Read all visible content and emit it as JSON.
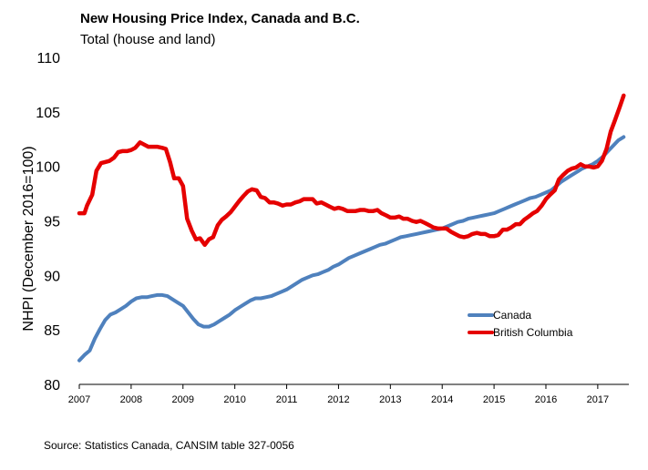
{
  "chart_data": {
    "type": "line",
    "title": "New Housing Price Index, Canada and B.C.",
    "subtitle": "Total (house and land)",
    "ylabel": "NHPI (December 2016=100)",
    "xlabel": "",
    "ylim": [
      80,
      110
    ],
    "yticks": [
      80,
      85,
      90,
      95,
      100,
      105,
      110
    ],
    "xlim": [
      2007,
      2017.6
    ],
    "xticks": [
      "2007",
      "2008",
      "2009",
      "2010",
      "2011",
      "2012",
      "2013",
      "2014",
      "2015",
      "2016",
      "2017"
    ],
    "grid": false,
    "legend_position": "right",
    "source": "Source:  Statistics Canada, CANSIM table  327-0056",
    "series": [
      {
        "name": "Canada",
        "color": "#4f81bd",
        "points": [
          [
            2007.0,
            82.2
          ],
          [
            2007.1,
            82.7
          ],
          [
            2007.2,
            83.1
          ],
          [
            2007.3,
            84.2
          ],
          [
            2007.4,
            85.1
          ],
          [
            2007.5,
            85.9
          ],
          [
            2007.6,
            86.4
          ],
          [
            2007.7,
            86.6
          ],
          [
            2007.8,
            86.9
          ],
          [
            2007.9,
            87.2
          ],
          [
            2008.0,
            87.6
          ],
          [
            2008.1,
            87.9
          ],
          [
            2008.2,
            88.0
          ],
          [
            2008.3,
            88.0
          ],
          [
            2008.4,
            88.1
          ],
          [
            2008.5,
            88.2
          ],
          [
            2008.6,
            88.2
          ],
          [
            2008.7,
            88.1
          ],
          [
            2008.8,
            87.8
          ],
          [
            2008.9,
            87.5
          ],
          [
            2009.0,
            87.2
          ],
          [
            2009.1,
            86.6
          ],
          [
            2009.2,
            86.0
          ],
          [
            2009.3,
            85.5
          ],
          [
            2009.4,
            85.3
          ],
          [
            2009.5,
            85.3
          ],
          [
            2009.6,
            85.5
          ],
          [
            2009.7,
            85.8
          ],
          [
            2009.8,
            86.1
          ],
          [
            2009.9,
            86.4
          ],
          [
            2010.0,
            86.8
          ],
          [
            2010.1,
            87.1
          ],
          [
            2010.2,
            87.4
          ],
          [
            2010.3,
            87.7
          ],
          [
            2010.4,
            87.9
          ],
          [
            2010.5,
            87.9
          ],
          [
            2010.6,
            88.0
          ],
          [
            2010.7,
            88.1
          ],
          [
            2010.8,
            88.3
          ],
          [
            2010.9,
            88.5
          ],
          [
            2011.0,
            88.7
          ],
          [
            2011.1,
            89.0
          ],
          [
            2011.2,
            89.3
          ],
          [
            2011.3,
            89.6
          ],
          [
            2011.4,
            89.8
          ],
          [
            2011.5,
            90.0
          ],
          [
            2011.6,
            90.1
          ],
          [
            2011.7,
            90.3
          ],
          [
            2011.8,
            90.5
          ],
          [
            2011.9,
            90.8
          ],
          [
            2012.0,
            91.0
          ],
          [
            2012.1,
            91.3
          ],
          [
            2012.2,
            91.6
          ],
          [
            2012.3,
            91.8
          ],
          [
            2012.4,
            92.0
          ],
          [
            2012.5,
            92.2
          ],
          [
            2012.6,
            92.4
          ],
          [
            2012.7,
            92.6
          ],
          [
            2012.8,
            92.8
          ],
          [
            2012.9,
            92.9
          ],
          [
            2013.0,
            93.1
          ],
          [
            2013.1,
            93.3
          ],
          [
            2013.2,
            93.5
          ],
          [
            2013.3,
            93.6
          ],
          [
            2013.4,
            93.7
          ],
          [
            2013.5,
            93.8
          ],
          [
            2013.6,
            93.9
          ],
          [
            2013.7,
            94.0
          ],
          [
            2013.8,
            94.1
          ],
          [
            2013.9,
            94.2
          ],
          [
            2014.0,
            94.3
          ],
          [
            2014.1,
            94.5
          ],
          [
            2014.2,
            94.7
          ],
          [
            2014.3,
            94.9
          ],
          [
            2014.4,
            95.0
          ],
          [
            2014.5,
            95.2
          ],
          [
            2014.6,
            95.3
          ],
          [
            2014.7,
            95.4
          ],
          [
            2014.8,
            95.5
          ],
          [
            2014.9,
            95.6
          ],
          [
            2015.0,
            95.7
          ],
          [
            2015.1,
            95.9
          ],
          [
            2015.2,
            96.1
          ],
          [
            2015.3,
            96.3
          ],
          [
            2015.4,
            96.5
          ],
          [
            2015.5,
            96.7
          ],
          [
            2015.6,
            96.9
          ],
          [
            2015.7,
            97.1
          ],
          [
            2015.8,
            97.2
          ],
          [
            2015.9,
            97.4
          ],
          [
            2016.0,
            97.6
          ],
          [
            2016.1,
            97.8
          ],
          [
            2016.2,
            98.2
          ],
          [
            2016.3,
            98.6
          ],
          [
            2016.4,
            98.9
          ],
          [
            2016.5,
            99.2
          ],
          [
            2016.6,
            99.5
          ],
          [
            2016.7,
            99.8
          ],
          [
            2016.8,
            100.0
          ],
          [
            2016.9,
            100.2
          ],
          [
            2017.0,
            100.5
          ],
          [
            2017.1,
            100.9
          ],
          [
            2017.2,
            101.4
          ],
          [
            2017.3,
            101.9
          ],
          [
            2017.4,
            102.4
          ],
          [
            2017.5,
            102.7
          ]
        ]
      },
      {
        "name": "British Columbia",
        "color": "#e50000",
        "points": [
          [
            2007.0,
            95.7
          ],
          [
            2007.1,
            95.7
          ],
          [
            2007.15,
            96.4
          ],
          [
            2007.25,
            97.4
          ],
          [
            2007.33,
            99.6
          ],
          [
            2007.42,
            100.3
          ],
          [
            2007.5,
            100.4
          ],
          [
            2007.58,
            100.5
          ],
          [
            2007.67,
            100.8
          ],
          [
            2007.75,
            101.3
          ],
          [
            2007.83,
            101.4
          ],
          [
            2007.92,
            101.4
          ],
          [
            2008.0,
            101.5
          ],
          [
            2008.08,
            101.7
          ],
          [
            2008.17,
            102.2
          ],
          [
            2008.25,
            102.0
          ],
          [
            2008.33,
            101.8
          ],
          [
            2008.42,
            101.8
          ],
          [
            2008.5,
            101.8
          ],
          [
            2008.6,
            101.7
          ],
          [
            2008.67,
            101.6
          ],
          [
            2008.75,
            100.4
          ],
          [
            2008.83,
            98.9
          ],
          [
            2008.92,
            98.9
          ],
          [
            2009.0,
            98.2
          ],
          [
            2009.08,
            95.2
          ],
          [
            2009.17,
            94.1
          ],
          [
            2009.25,
            93.3
          ],
          [
            2009.33,
            93.4
          ],
          [
            2009.42,
            92.8
          ],
          [
            2009.5,
            93.3
          ],
          [
            2009.58,
            93.5
          ],
          [
            2009.67,
            94.6
          ],
          [
            2009.75,
            95.1
          ],
          [
            2009.83,
            95.4
          ],
          [
            2009.92,
            95.8
          ],
          [
            2010.0,
            96.3
          ],
          [
            2010.08,
            96.8
          ],
          [
            2010.17,
            97.3
          ],
          [
            2010.25,
            97.7
          ],
          [
            2010.33,
            97.9
          ],
          [
            2010.42,
            97.8
          ],
          [
            2010.5,
            97.2
          ],
          [
            2010.58,
            97.1
          ],
          [
            2010.67,
            96.7
          ],
          [
            2010.75,
            96.7
          ],
          [
            2010.83,
            96.6
          ],
          [
            2010.92,
            96.4
          ],
          [
            2011.0,
            96.5
          ],
          [
            2011.08,
            96.5
          ],
          [
            2011.17,
            96.7
          ],
          [
            2011.25,
            96.8
          ],
          [
            2011.33,
            97.0
          ],
          [
            2011.42,
            97.0
          ],
          [
            2011.5,
            97.0
          ],
          [
            2011.58,
            96.6
          ],
          [
            2011.67,
            96.7
          ],
          [
            2011.75,
            96.5
          ],
          [
            2011.83,
            96.3
          ],
          [
            2011.92,
            96.1
          ],
          [
            2012.0,
            96.2
          ],
          [
            2012.08,
            96.1
          ],
          [
            2012.17,
            95.9
          ],
          [
            2012.25,
            95.9
          ],
          [
            2012.33,
            95.9
          ],
          [
            2012.42,
            96.0
          ],
          [
            2012.5,
            96.0
          ],
          [
            2012.58,
            95.9
          ],
          [
            2012.67,
            95.9
          ],
          [
            2012.75,
            96.0
          ],
          [
            2012.83,
            95.7
          ],
          [
            2012.92,
            95.5
          ],
          [
            2013.0,
            95.3
          ],
          [
            2013.08,
            95.3
          ],
          [
            2013.17,
            95.4
          ],
          [
            2013.25,
            95.2
          ],
          [
            2013.33,
            95.2
          ],
          [
            2013.42,
            95.0
          ],
          [
            2013.5,
            94.9
          ],
          [
            2013.58,
            95.0
          ],
          [
            2013.67,
            94.8
          ],
          [
            2013.75,
            94.6
          ],
          [
            2013.83,
            94.4
          ],
          [
            2013.92,
            94.3
          ],
          [
            2014.0,
            94.3
          ],
          [
            2014.08,
            94.3
          ],
          [
            2014.17,
            94.0
          ],
          [
            2014.25,
            93.8
          ],
          [
            2014.33,
            93.6
          ],
          [
            2014.42,
            93.5
          ],
          [
            2014.5,
            93.6
          ],
          [
            2014.58,
            93.8
          ],
          [
            2014.67,
            93.9
          ],
          [
            2014.75,
            93.8
          ],
          [
            2014.83,
            93.8
          ],
          [
            2014.92,
            93.6
          ],
          [
            2015.0,
            93.6
          ],
          [
            2015.08,
            93.7
          ],
          [
            2015.17,
            94.2
          ],
          [
            2015.25,
            94.2
          ],
          [
            2015.33,
            94.4
          ],
          [
            2015.42,
            94.7
          ],
          [
            2015.5,
            94.7
          ],
          [
            2015.58,
            95.1
          ],
          [
            2015.67,
            95.4
          ],
          [
            2015.75,
            95.7
          ],
          [
            2015.83,
            95.9
          ],
          [
            2015.92,
            96.4
          ],
          [
            2016.0,
            97.0
          ],
          [
            2016.08,
            97.4
          ],
          [
            2016.17,
            97.8
          ],
          [
            2016.25,
            98.8
          ],
          [
            2016.33,
            99.2
          ],
          [
            2016.42,
            99.6
          ],
          [
            2016.5,
            99.8
          ],
          [
            2016.58,
            99.9
          ],
          [
            2016.67,
            100.2
          ],
          [
            2016.75,
            100.0
          ],
          [
            2016.83,
            100.0
          ],
          [
            2016.92,
            99.9
          ],
          [
            2017.0,
            100.0
          ],
          [
            2017.08,
            100.5
          ],
          [
            2017.17,
            101.6
          ],
          [
            2017.25,
            103.2
          ],
          [
            2017.33,
            104.2
          ],
          [
            2017.42,
            105.4
          ],
          [
            2017.5,
            106.5
          ]
        ]
      }
    ]
  }
}
